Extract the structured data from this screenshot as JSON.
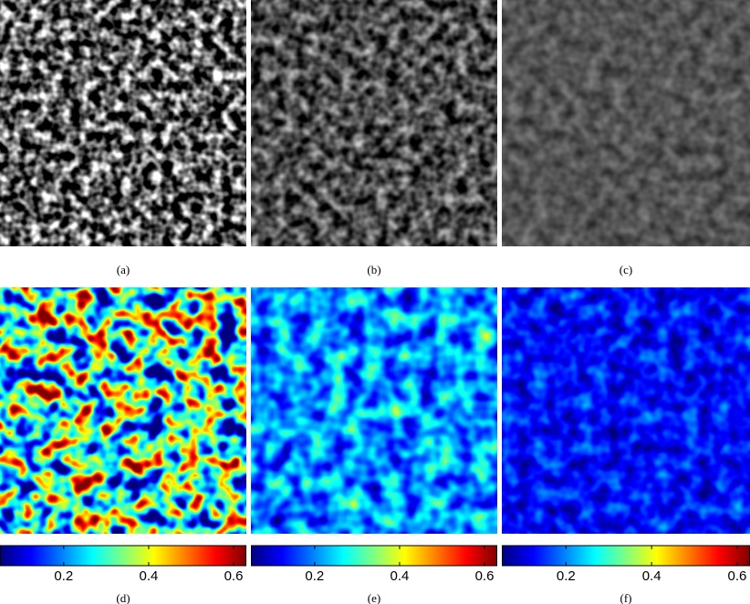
{
  "figure": {
    "panels": [
      {
        "caption": "(a)"
      },
      {
        "caption": "(b)"
      },
      {
        "caption": "(c)"
      },
      {
        "caption": "(d)"
      },
      {
        "caption": "(e)"
      },
      {
        "caption": "(f)"
      }
    ],
    "colorbars": [
      {
        "lim": [
          0.05,
          0.63
        ],
        "ticks": [
          0.2,
          0.4,
          0.6
        ]
      },
      {
        "lim": [
          0.05,
          0.63
        ],
        "ticks": [
          0.2,
          0.4,
          0.6
        ]
      },
      {
        "lim": [
          0.05,
          0.63
        ],
        "ticks": [
          0.2,
          0.4,
          0.6
        ]
      }
    ]
  }
}
